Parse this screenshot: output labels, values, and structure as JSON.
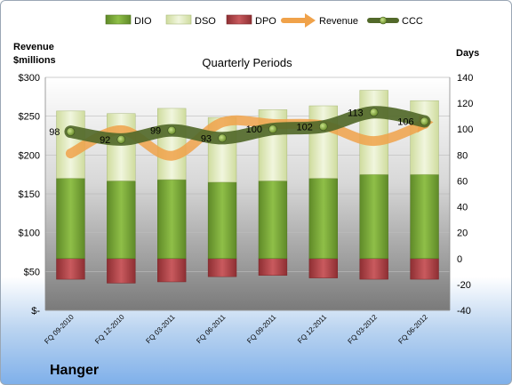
{
  "chart_data": {
    "type": "bar",
    "title": "Quarterly Periods",
    "company": "Hanger",
    "left_axis_label": [
      "Revenue",
      "$millions"
    ],
    "right_axis_label": "Days",
    "categories": [
      "FQ 09-2010",
      "FQ 12-2010",
      "FQ 03-2011",
      "FQ 06-2011",
      "FQ 09-2011",
      "FQ 12-2011",
      "FQ 03-2012",
      "FQ 06-2012"
    ],
    "left_ticks": [
      "$-",
      "$50",
      "$100",
      "$150",
      "$200",
      "$250",
      "$300"
    ],
    "right_ticks": [
      "-40",
      "-20",
      "0",
      "20",
      "40",
      "60",
      "80",
      "100",
      "120",
      "140"
    ],
    "left_ylim": [
      0,
      300
    ],
    "right_ylim": [
      -40,
      140
    ],
    "legend_position": "top",
    "series": [
      {
        "name": "DIO",
        "axis": "right",
        "kind": "stacked-bar",
        "color": "#7aa23a",
        "values": [
          62,
          60,
          61,
          59,
          60,
          62,
          65,
          65
        ]
      },
      {
        "name": "DSO",
        "axis": "right",
        "kind": "stacked-bar",
        "color": "#e6efc9",
        "values": [
          52,
          52,
          55,
          50,
          55,
          56,
          65,
          57
        ]
      },
      {
        "name": "DPO",
        "axis": "right",
        "kind": "negative-bar",
        "color": "#b7464a",
        "values": [
          -16,
          -19,
          -18,
          -14,
          -13,
          -15,
          -16,
          -16
        ]
      },
      {
        "name": "Revenue",
        "axis": "left",
        "kind": "line",
        "color": "#f0a24a",
        "values": [
          202,
          232,
          199,
          242,
          240,
          238,
          218,
          240
        ]
      },
      {
        "name": "CCC",
        "axis": "right",
        "kind": "line",
        "color": "#52692a",
        "values": [
          98,
          92,
          99,
          93,
          100,
          102,
          113,
          106
        ],
        "labels": [
          "98",
          "92",
          "99",
          "93",
          "100",
          "102",
          "113",
          "106"
        ]
      }
    ]
  }
}
